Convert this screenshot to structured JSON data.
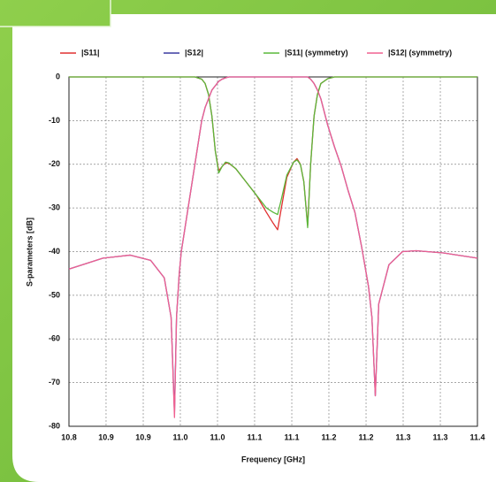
{
  "chart_data": {
    "type": "line",
    "x_label": "Frequency [GHz]",
    "y_label": "S-parameters [dB]",
    "x": [
      10.8,
      10.85,
      10.89,
      10.92,
      10.94,
      10.95,
      10.955,
      10.958,
      10.962,
      10.965,
      10.975,
      10.985,
      10.995,
      11.0,
      11.005,
      11.01,
      11.015,
      11.02,
      11.025,
      11.03,
      11.035,
      11.045,
      11.06,
      11.075,
      11.09,
      11.1,
      11.1065,
      11.112,
      11.12,
      11.13,
      11.135,
      11.14,
      11.145,
      11.1506,
      11.155,
      11.16,
      11.165,
      11.17,
      11.18,
      11.19,
      11.2,
      11.21,
      11.22,
      11.23,
      11.24,
      11.245,
      11.25,
      11.255,
      11.27,
      11.29,
      11.31,
      11.35,
      11.4
    ],
    "series": [
      {
        "name": "|S11|",
        "color": "#e03030",
        "values": [
          0,
          0,
          0,
          0,
          0,
          0,
          0,
          0,
          0,
          0,
          0,
          0,
          -0.5,
          -1.5,
          -4,
          -9,
          -17,
          -21.5,
          -20.5,
          -19.7,
          -19.8,
          -21,
          -24,
          -27,
          -31,
          -33.5,
          -35,
          -30,
          -23,
          -19.5,
          -18.7,
          -20,
          -24,
          -34,
          -20,
          -9,
          -4,
          -1.5,
          -0.4,
          0,
          0,
          0,
          0,
          0,
          0,
          0,
          0,
          0,
          0,
          0,
          0,
          0,
          0
        ]
      },
      {
        "name": "|S12|",
        "color": "#3a3aa0",
        "values": [
          -44,
          -41.5,
          -40.8,
          -42,
          -46,
          -55,
          -77,
          -55,
          -45,
          -40,
          -30,
          -20,
          -10,
          -7,
          -5,
          -3,
          -2,
          -1,
          -0.5,
          -0.2,
          0,
          0,
          0,
          0,
          0,
          0,
          0,
          0,
          0,
          0,
          0,
          0,
          0,
          0,
          -0.5,
          -1.5,
          -3,
          -5,
          -11,
          -16,
          -20.5,
          -26,
          -31,
          -39,
          -48,
          -55,
          -73,
          -52,
          -43,
          -40,
          -39.8,
          -40.3,
          -41.5
        ]
      },
      {
        "name": "|S11| (symmetry)",
        "color": "#5ab83a",
        "values": [
          0,
          0,
          0,
          0,
          0,
          0,
          0,
          0,
          0,
          0,
          0,
          0,
          -0.5,
          -1.5,
          -4,
          -9,
          -17,
          -22,
          -20.5,
          -19.5,
          -19.7,
          -21,
          -24,
          -27,
          -30,
          -31,
          -31.5,
          -28,
          -22.5,
          -19.5,
          -19,
          -20,
          -24,
          -34.5,
          -20,
          -9,
          -4,
          -1.5,
          -0.4,
          0,
          0,
          0,
          0,
          0,
          0,
          0,
          0,
          0,
          0,
          0,
          0,
          0,
          0
        ]
      },
      {
        "name": "|S12| (symmetry)",
        "color": "#f06090",
        "values": [
          -44,
          -41.5,
          -40.8,
          -42,
          -46,
          -55,
          -78,
          -55,
          -45,
          -40,
          -30,
          -20,
          -10,
          -7,
          -5,
          -3,
          -2,
          -1,
          -0.5,
          -0.2,
          0,
          0,
          0,
          0,
          0,
          0,
          0,
          0,
          0,
          0,
          0,
          0,
          0,
          0,
          -0.5,
          -1.5,
          -3,
          -5,
          -11,
          -16,
          -20.5,
          -26,
          -31,
          -39,
          -48,
          -55,
          -73,
          -52,
          -43,
          -40,
          -39.8,
          -40.3,
          -41.5
        ]
      }
    ],
    "xlim": [
      10.8,
      11.4
    ],
    "ylim": [
      -80,
      0
    ],
    "xticks": [
      10.8,
      {
        "value": 10.8545,
        "label": "10.9"
      },
      {
        "value": 10.9091,
        "label": "10.9"
      },
      {
        "value": 10.9636,
        "label": "11.0"
      },
      {
        "value": 11.0182,
        "label": "11.0"
      },
      {
        "value": 11.0727,
        "label": "11.1"
      },
      {
        "value": 11.1273,
        "label": "11.1"
      },
      {
        "value": 11.1818,
        "label": "11.2"
      },
      {
        "value": 11.2364,
        "label": "11.2"
      },
      {
        "value": 11.2909,
        "label": "11.3"
      },
      {
        "value": 11.3455,
        "label": "11.3"
      },
      11.4
    ],
    "yticks": [
      0,
      -10,
      -20,
      -30,
      -40,
      -50,
      -60,
      -70,
      -80
    ],
    "grid": true,
    "legend": "top"
  }
}
